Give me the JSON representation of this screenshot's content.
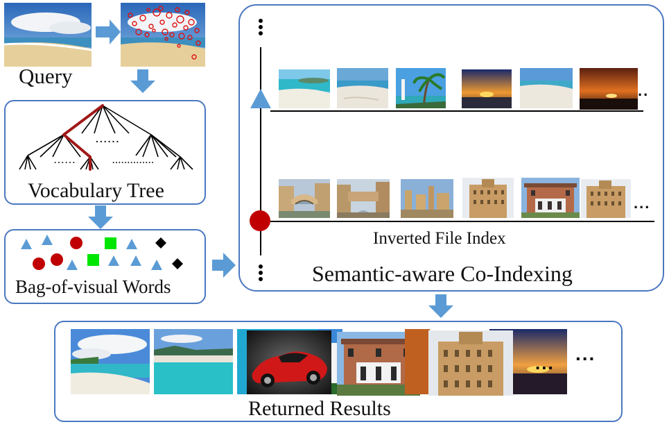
{
  "labels": {
    "query": "Query",
    "vocab_tree": "Vocabulary Tree",
    "bow": "Bag-of-visual Words",
    "inverted_index": "Inverted File Index",
    "coindexing": "Semantic-aware Co-Indexing",
    "returned": "Returned Results"
  },
  "ellipsis": {
    "tree_upper": "......",
    "tree_lower_left": "......",
    "tree_lower_right": "..............",
    "row1_more": "..",
    "row2_more": "...",
    "results_more": "...",
    "results_overlay": "..."
  },
  "icons": {
    "arrow_color": "#5b9bd5",
    "box_border": "#4a78c0",
    "circle_red": "#c00000",
    "square_green": "#00e600",
    "diamond_black": "#000000",
    "triangle_blue": "#5b9bd5",
    "path_red": "#a01818"
  }
}
